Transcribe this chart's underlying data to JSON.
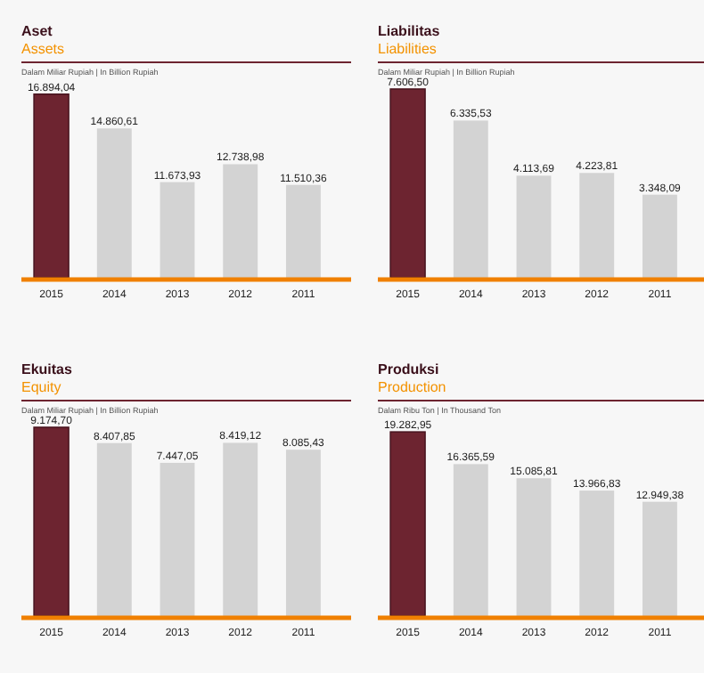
{
  "chart_data": [
    {
      "type": "bar",
      "title": "Aset",
      "subtitle": "Assets",
      "annotations": [
        "Dalam Miliar Rupiah | In Billion Rupiah"
      ],
      "categories": [
        "2015",
        "2014",
        "2013",
        "2012",
        "2011"
      ],
      "values": [
        16894.04,
        14860.61,
        11673.93,
        12738.98,
        11510.36
      ],
      "value_labels": [
        "16.894,04",
        "14.860,61",
        "11.673,93",
        "12.738,98",
        "11.510,36"
      ],
      "colors": [
        "#6d2430",
        "#d3d3d3",
        "#d3d3d3",
        "#d3d3d3",
        "#d3d3d3"
      ],
      "ylim": [
        6000,
        17200
      ],
      "tick_labels": "x"
    },
    {
      "type": "bar",
      "title": "Liabilitas",
      "subtitle": "Liabilities",
      "annotations": [
        "Dalam Miliar Rupiah | In Billion Rupiah"
      ],
      "categories": [
        "2015",
        "2014",
        "2013",
        "2012",
        "2011"
      ],
      "values": [
        7606.5,
        6335.53,
        4113.69,
        4223.81,
        3348.09
      ],
      "value_labels": [
        "7.606,50",
        "6.335,53",
        "4.113,69",
        "4.223,81",
        "3.348,09"
      ],
      "colors": [
        "#6d2430",
        "#d3d3d3",
        "#d3d3d3",
        "#d3d3d3",
        "#d3d3d3"
      ],
      "tick_labels": "x"
    },
    {
      "type": "bar",
      "title": "Ekuitas",
      "subtitle": "Equity",
      "annotations": [
        "Dalam Miliar Rupiah | In Billion Rupiah"
      ],
      "categories": [
        "2015",
        "2014",
        "2013",
        "2012",
        "2011"
      ],
      "values": [
        9174.7,
        8407.85,
        7447.05,
        8419.12,
        8085.43
      ],
      "value_labels": [
        "9.174,70",
        "8.407,85",
        "7.447,05",
        "8.419,12",
        "8.085,43"
      ],
      "colors": [
        "#6d2430",
        "#d3d3d3",
        "#d3d3d3",
        "#d3d3d3",
        "#d3d3d3"
      ],
      "tick_labels": "x"
    },
    {
      "type": "bar",
      "title": "Produksi",
      "subtitle": "Production",
      "annotations": [
        "Dalam Ribu Ton | In Thousand Ton"
      ],
      "categories": [
        "2015",
        "2014",
        "2013",
        "2012",
        "2011"
      ],
      "values": [
        19282.95,
        16365.59,
        15085.81,
        13966.83,
        12949.38
      ],
      "value_labels": [
        "19.282,95",
        "16.365,59",
        "15.085,81",
        "13.966,83",
        "12.949,38"
      ],
      "colors": [
        "#6d2430",
        "#d3d3d3",
        "#d3d3d3",
        "#d3d3d3",
        "#d3d3d3"
      ],
      "ylim": [
        2600,
        19700
      ],
      "tick_labels": "x"
    }
  ]
}
